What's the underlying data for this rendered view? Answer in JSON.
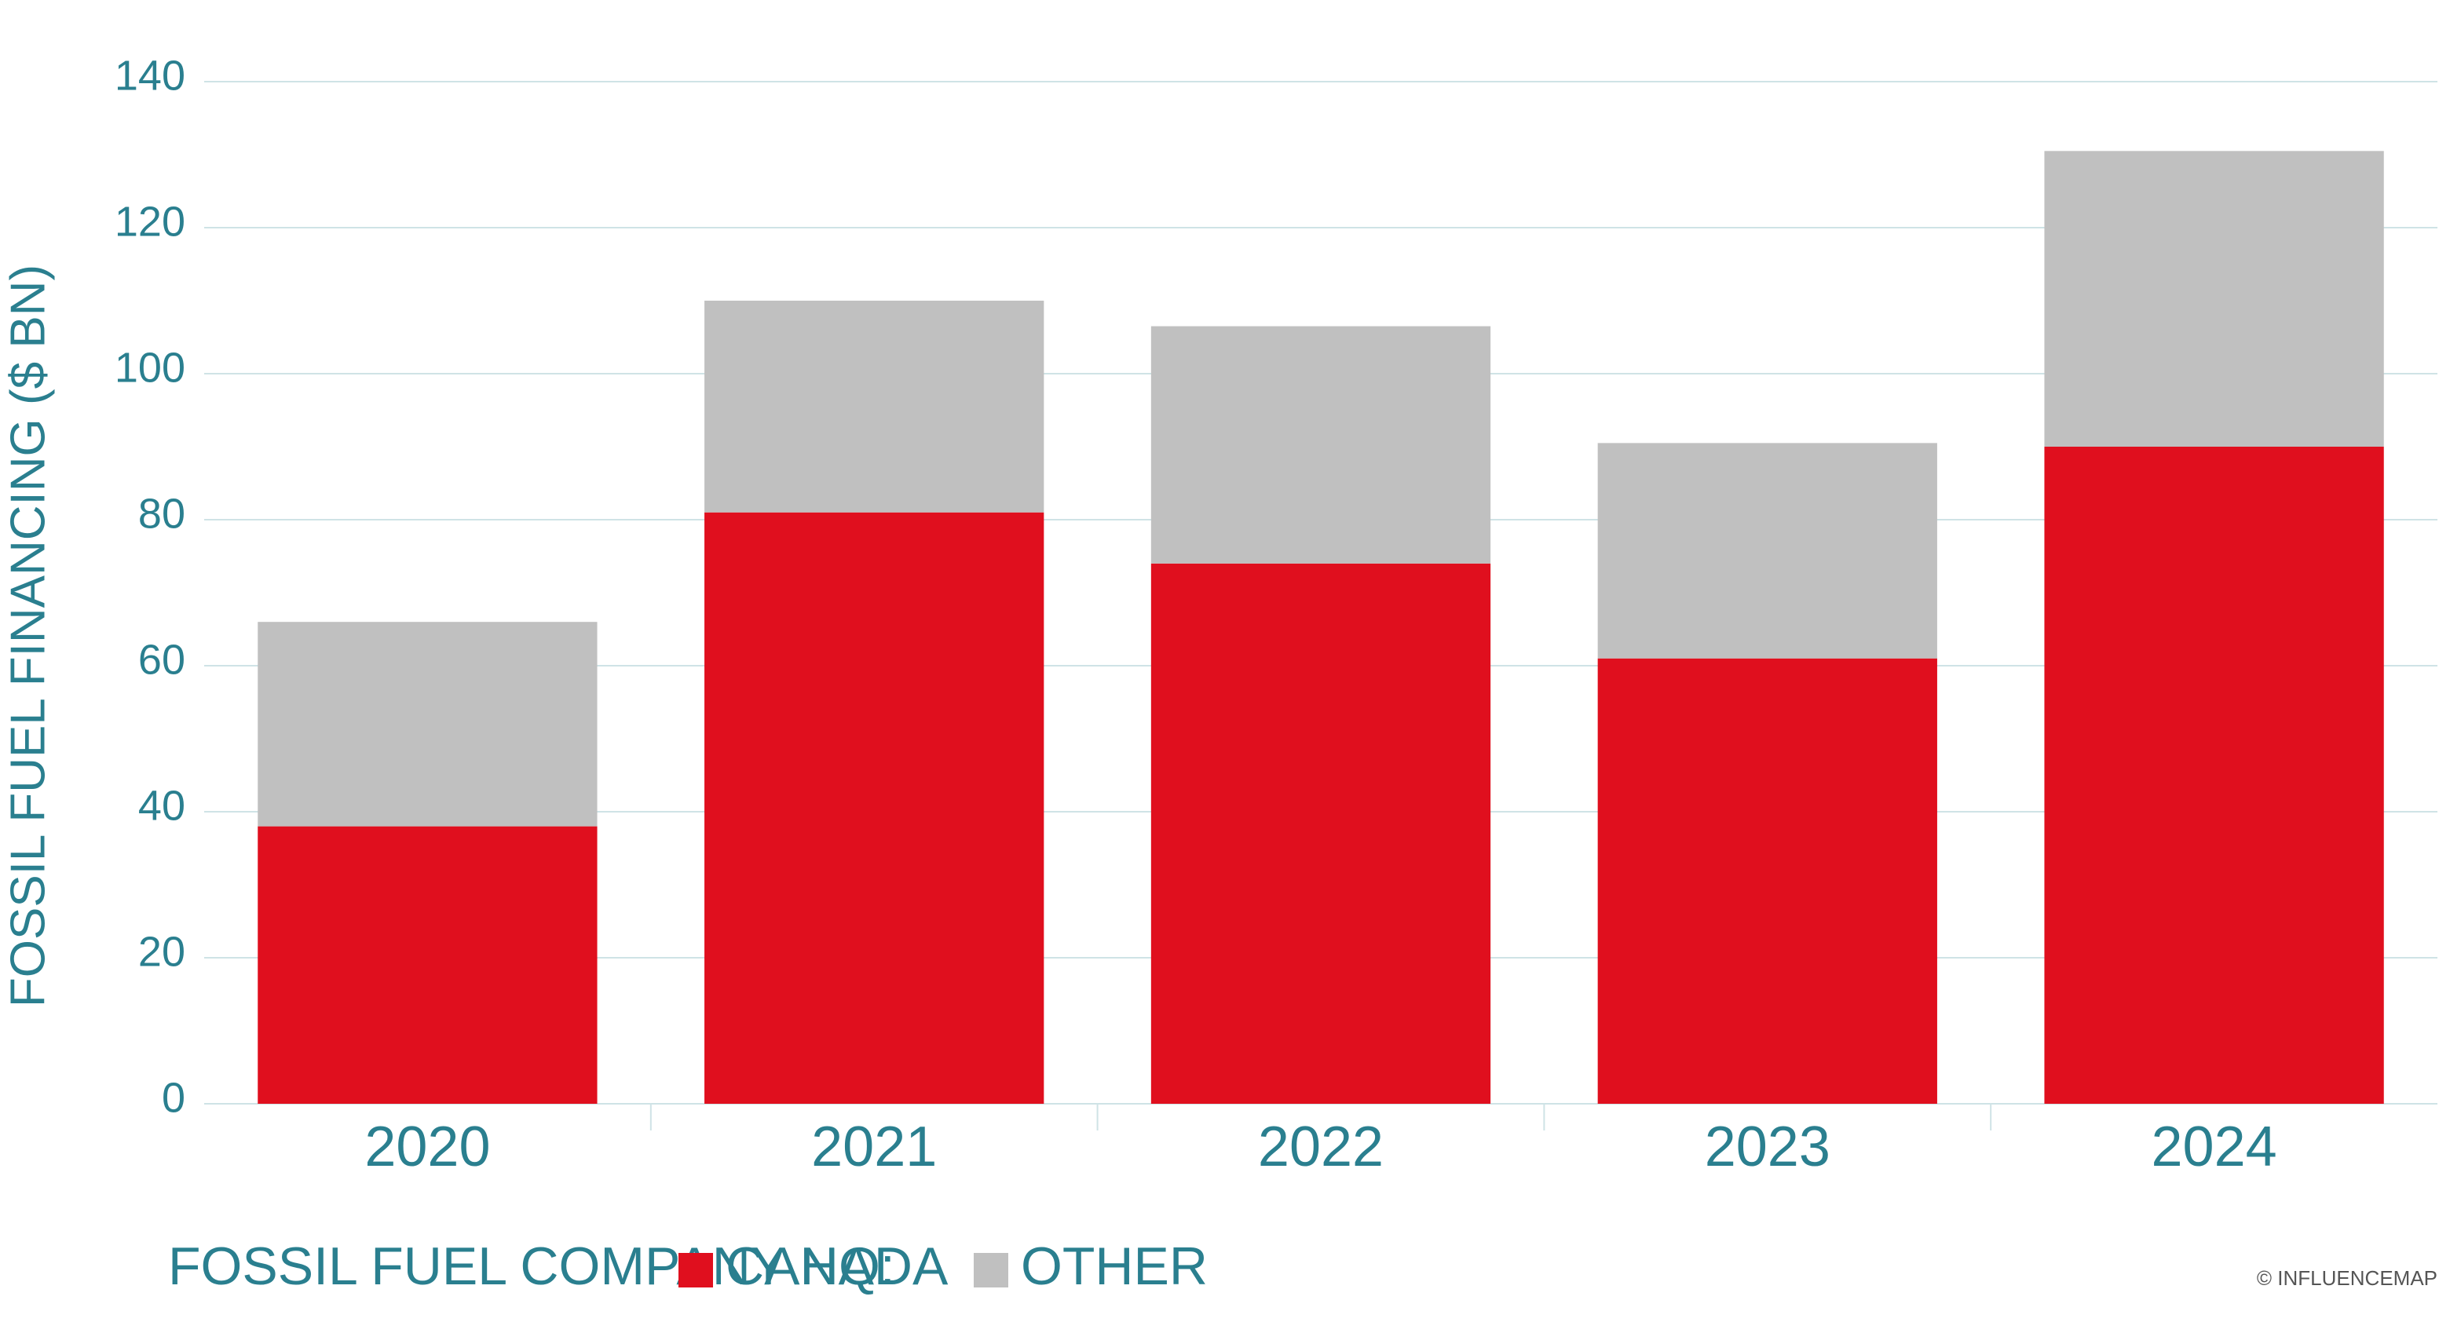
{
  "chart_data": {
    "type": "stacked_bar",
    "ylabel": "FOSSIL FUEL FINANCING ($ BN)",
    "categories": [
      "2020",
      "2021",
      "2022",
      "2023",
      "2024"
    ],
    "series": [
      {
        "name": "CANADA",
        "color": "#e00f1e",
        "values": [
          38,
          81,
          74,
          61,
          90
        ]
      },
      {
        "name": "OTHER",
        "color": "#c0c0c0",
        "values": [
          28,
          29,
          32.5,
          29.5,
          40.5
        ]
      }
    ],
    "ylim": [
      0,
      140
    ],
    "yticks": [
      0,
      20,
      40,
      60,
      80,
      100,
      120,
      140
    ],
    "grid": true,
    "legend_title": "FOSSIL FUEL COMPANY HQ:",
    "legend_position": "bottom-left",
    "credit": "© INFLUENCEMAP"
  }
}
